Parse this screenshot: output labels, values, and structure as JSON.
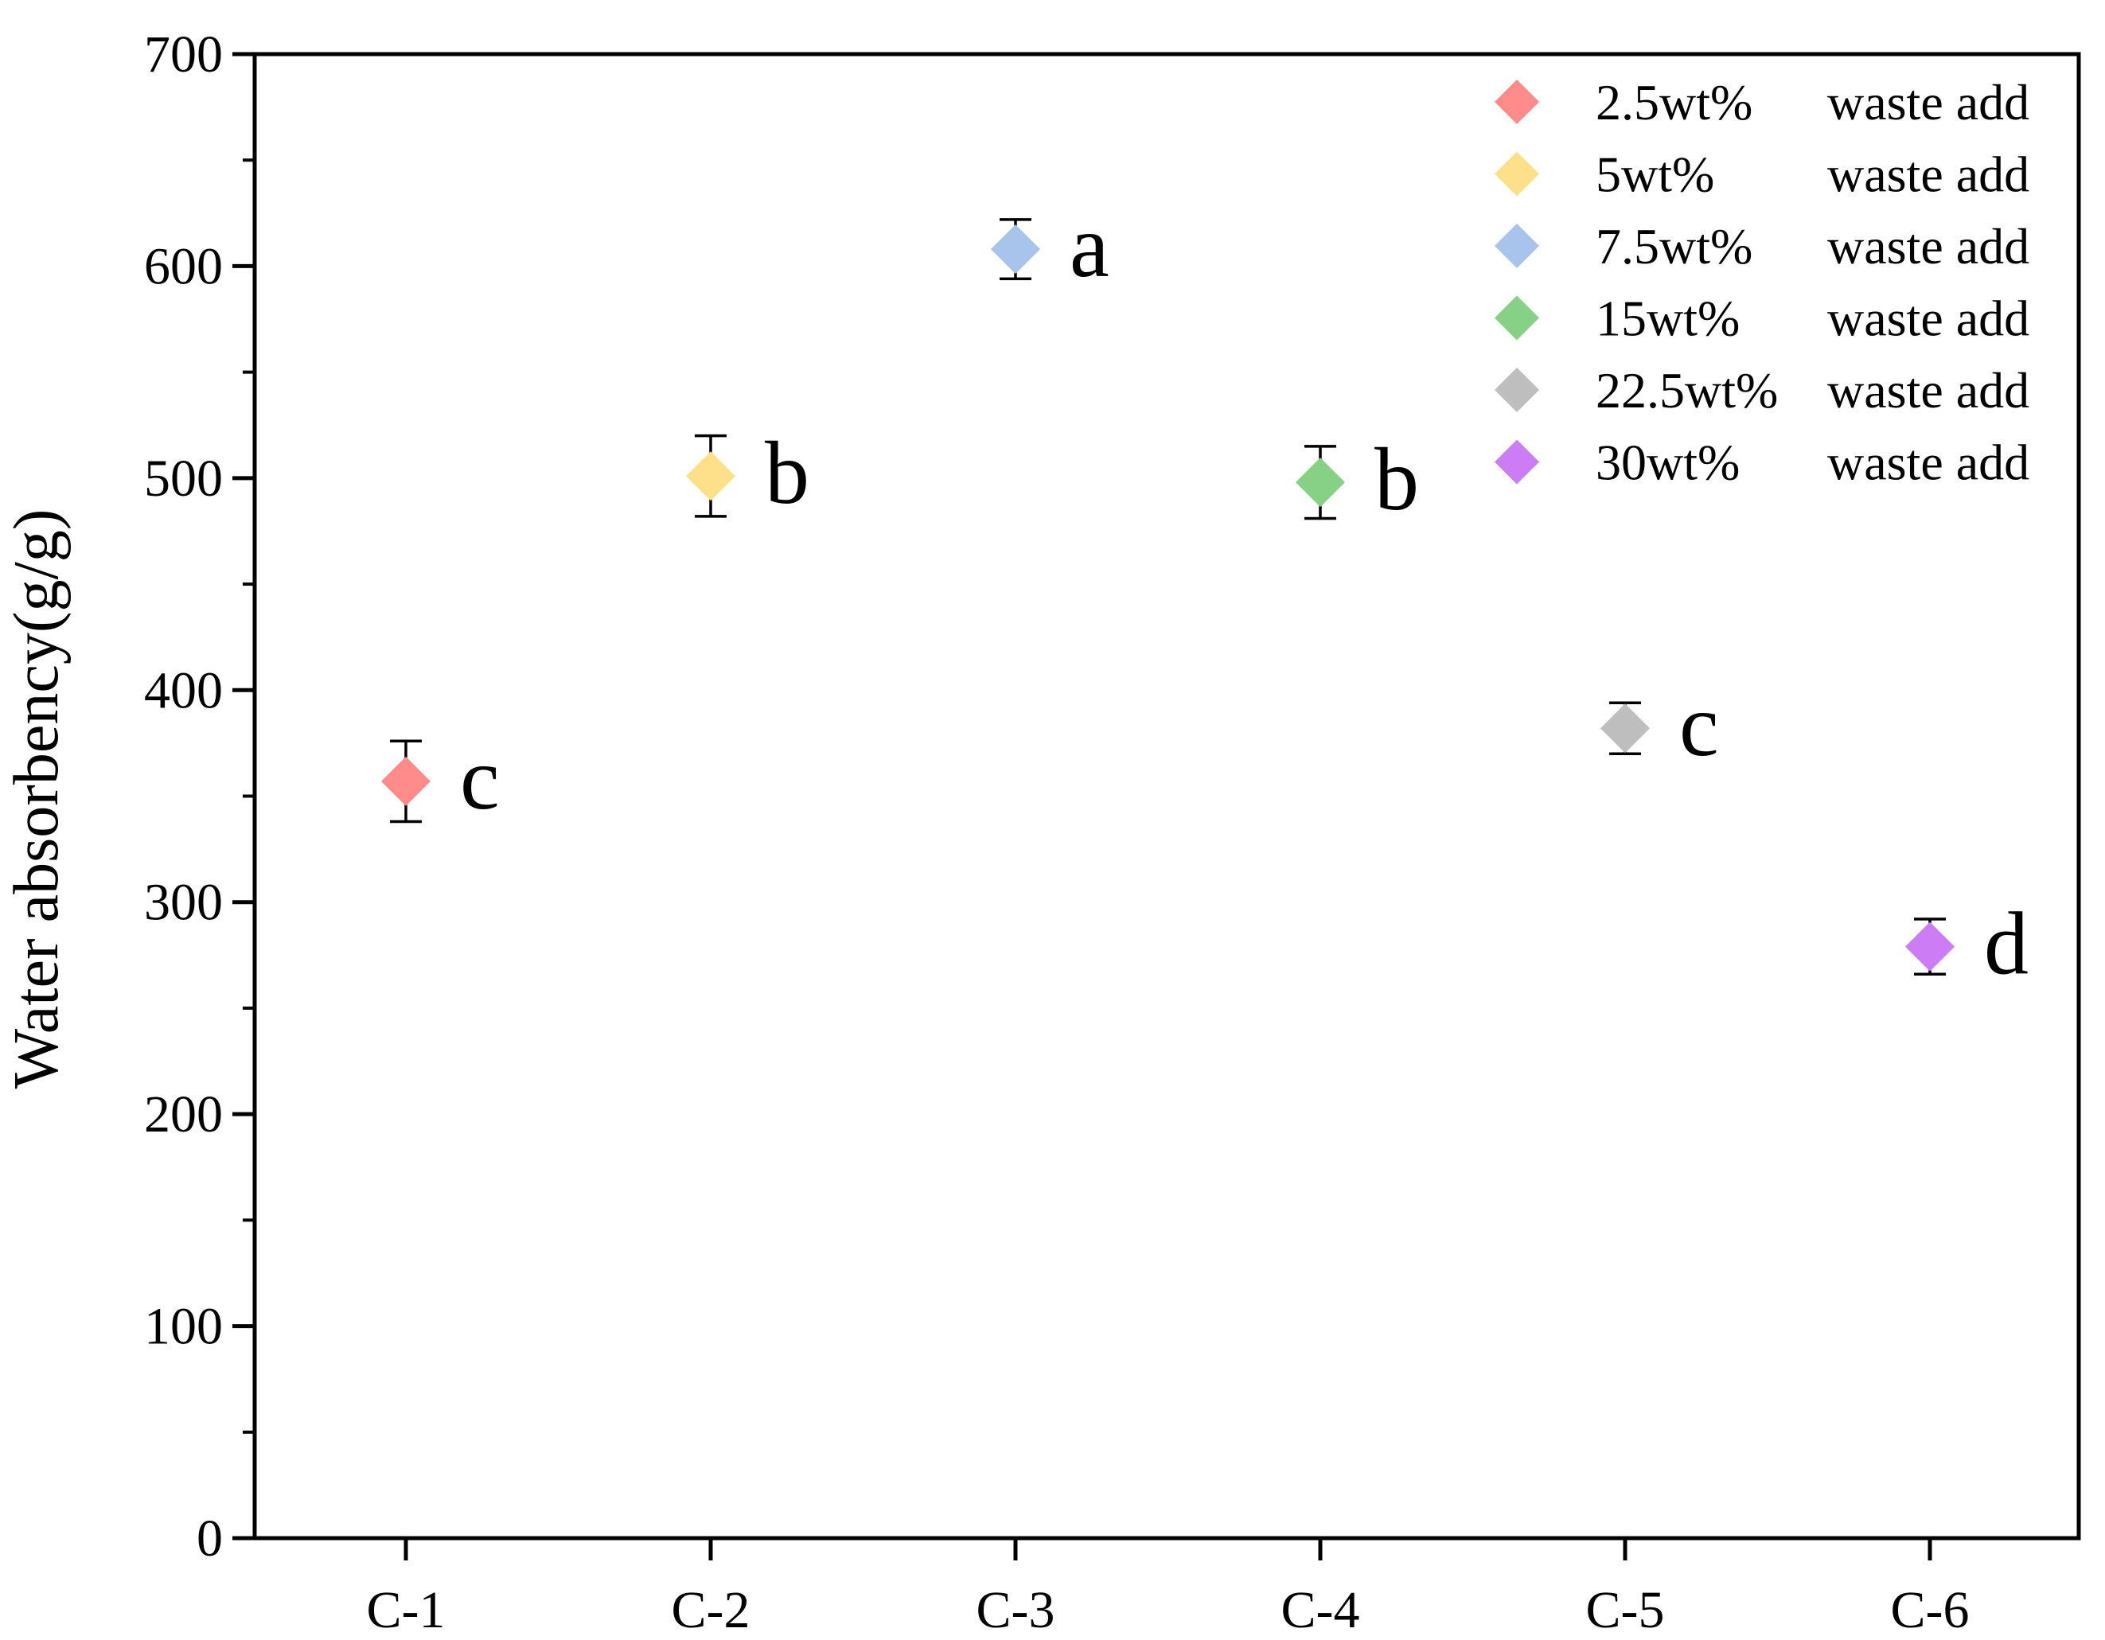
{
  "chart_data": {
    "type": "scatter",
    "title": "",
    "xlabel": "",
    "ylabel": "Water absorbency(g/g)",
    "categories": [
      "C-1",
      "C-2",
      "C-3",
      "C-4",
      "C-5",
      "C-6"
    ],
    "ylim": [
      0,
      700
    ],
    "yticks": [
      0,
      100,
      200,
      300,
      400,
      500,
      600,
      700
    ],
    "grid": false,
    "legend_position": "top-right",
    "marker": "diamond",
    "series": [
      {
        "name": "2.5wt%",
        "suffix": "waste add",
        "category": "C-1",
        "value": 357,
        "error": 19,
        "label": "c",
        "color": "#ff8b8b"
      },
      {
        "name": "5wt%",
        "suffix": "waste add",
        "category": "C-2",
        "value": 501,
        "error": 19,
        "label": "b",
        "color": "#ffe08a"
      },
      {
        "name": "7.5wt%",
        "suffix": "waste add",
        "category": "C-3",
        "value": 608,
        "error": 14,
        "label": "a",
        "color": "#a8c3ec"
      },
      {
        "name": "15wt%",
        "suffix": "waste add",
        "category": "C-4",
        "value": 498,
        "error": 17,
        "label": "b",
        "color": "#86d186"
      },
      {
        "name": "22.5wt%",
        "suffix": "waste add",
        "category": "C-5",
        "value": 382,
        "error": 12,
        "label": "c",
        "color": "#bebebe"
      },
      {
        "name": "30wt%",
        "suffix": "waste add",
        "category": "C-6",
        "value": 279,
        "error": 13,
        "label": "d",
        "color": "#cc7cf4"
      }
    ]
  }
}
